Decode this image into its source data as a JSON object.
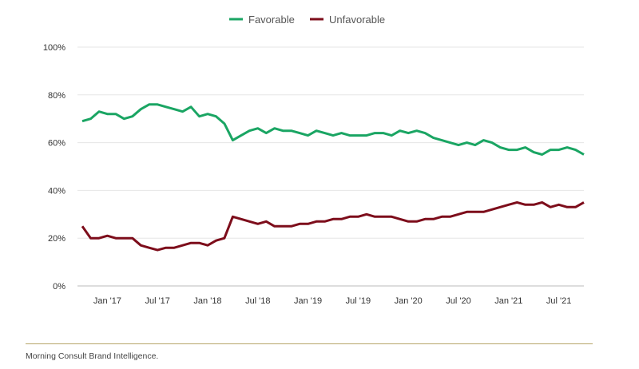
{
  "chart_data": {
    "type": "line",
    "legend_position": "top-center",
    "grid": true,
    "y_ticks": [
      "0%",
      "20%",
      "40%",
      "60%",
      "80%",
      "100%"
    ],
    "ylim": [
      0,
      100
    ],
    "x_tick_labels": [
      "Jan '17",
      "Jul '17",
      "Jan '18",
      "Jul '18",
      "Jan '19",
      "Jul '19",
      "Jan '20",
      "Jul '20",
      "Jan '21",
      "Jul '21"
    ],
    "x_tick_dates": [
      "2017-01",
      "2017-07",
      "2018-01",
      "2018-07",
      "2019-01",
      "2019-07",
      "2020-01",
      "2020-07",
      "2021-01",
      "2021-07"
    ],
    "xlim": [
      "2016-10",
      "2021-10"
    ],
    "series": [
      {
        "name": "Favorable",
        "color": "#1aa563",
        "points": [
          [
            "2016-10",
            69
          ],
          [
            "2016-11",
            70
          ],
          [
            "2016-12",
            73
          ],
          [
            "2017-01",
            72
          ],
          [
            "2017-02",
            72
          ],
          [
            "2017-03",
            70
          ],
          [
            "2017-04",
            71
          ],
          [
            "2017-05",
            74
          ],
          [
            "2017-06",
            76
          ],
          [
            "2017-07",
            76
          ],
          [
            "2017-08",
            75
          ],
          [
            "2017-09",
            74
          ],
          [
            "2017-10",
            73
          ],
          [
            "2017-11",
            75
          ],
          [
            "2017-12",
            71
          ],
          [
            "2018-01",
            72
          ],
          [
            "2018-02",
            71
          ],
          [
            "2018-03",
            68
          ],
          [
            "2018-04",
            61
          ],
          [
            "2018-05",
            63
          ],
          [
            "2018-06",
            65
          ],
          [
            "2018-07",
            66
          ],
          [
            "2018-08",
            64
          ],
          [
            "2018-09",
            66
          ],
          [
            "2018-10",
            65
          ],
          [
            "2018-11",
            65
          ],
          [
            "2018-12",
            64
          ],
          [
            "2019-01",
            63
          ],
          [
            "2019-02",
            65
          ],
          [
            "2019-03",
            64
          ],
          [
            "2019-04",
            63
          ],
          [
            "2019-05",
            64
          ],
          [
            "2019-06",
            63
          ],
          [
            "2019-07",
            63
          ],
          [
            "2019-08",
            63
          ],
          [
            "2019-09",
            64
          ],
          [
            "2019-10",
            64
          ],
          [
            "2019-11",
            63
          ],
          [
            "2019-12",
            65
          ],
          [
            "2020-01",
            64
          ],
          [
            "2020-02",
            65
          ],
          [
            "2020-03",
            64
          ],
          [
            "2020-04",
            62
          ],
          [
            "2020-05",
            61
          ],
          [
            "2020-06",
            60
          ],
          [
            "2020-07",
            59
          ],
          [
            "2020-08",
            60
          ],
          [
            "2020-09",
            59
          ],
          [
            "2020-10",
            61
          ],
          [
            "2020-11",
            60
          ],
          [
            "2020-12",
            58
          ],
          [
            "2021-01",
            57
          ],
          [
            "2021-02",
            57
          ],
          [
            "2021-03",
            58
          ],
          [
            "2021-04",
            56
          ],
          [
            "2021-05",
            55
          ],
          [
            "2021-06",
            57
          ],
          [
            "2021-07",
            57
          ],
          [
            "2021-08",
            58
          ],
          [
            "2021-09",
            57
          ],
          [
            "2021-10",
            55
          ]
        ]
      },
      {
        "name": "Unfavorable",
        "color": "#7d0d1b",
        "points": [
          [
            "2016-10",
            25
          ],
          [
            "2016-11",
            20
          ],
          [
            "2016-12",
            20
          ],
          [
            "2017-01",
            21
          ],
          [
            "2017-02",
            20
          ],
          [
            "2017-03",
            20
          ],
          [
            "2017-04",
            20
          ],
          [
            "2017-05",
            17
          ],
          [
            "2017-06",
            16
          ],
          [
            "2017-07",
            15
          ],
          [
            "2017-08",
            16
          ],
          [
            "2017-09",
            16
          ],
          [
            "2017-10",
            17
          ],
          [
            "2017-11",
            18
          ],
          [
            "2017-12",
            18
          ],
          [
            "2018-01",
            17
          ],
          [
            "2018-02",
            19
          ],
          [
            "2018-03",
            20
          ],
          [
            "2018-04",
            29
          ],
          [
            "2018-05",
            28
          ],
          [
            "2018-06",
            27
          ],
          [
            "2018-07",
            26
          ],
          [
            "2018-08",
            27
          ],
          [
            "2018-09",
            25
          ],
          [
            "2018-10",
            25
          ],
          [
            "2018-11",
            25
          ],
          [
            "2018-12",
            26
          ],
          [
            "2019-01",
            26
          ],
          [
            "2019-02",
            27
          ],
          [
            "2019-03",
            27
          ],
          [
            "2019-04",
            28
          ],
          [
            "2019-05",
            28
          ],
          [
            "2019-06",
            29
          ],
          [
            "2019-07",
            29
          ],
          [
            "2019-08",
            30
          ],
          [
            "2019-09",
            29
          ],
          [
            "2019-10",
            29
          ],
          [
            "2019-11",
            29
          ],
          [
            "2019-12",
            28
          ],
          [
            "2020-01",
            27
          ],
          [
            "2020-02",
            27
          ],
          [
            "2020-03",
            28
          ],
          [
            "2020-04",
            28
          ],
          [
            "2020-05",
            29
          ],
          [
            "2020-06",
            29
          ],
          [
            "2020-07",
            30
          ],
          [
            "2020-08",
            31
          ],
          [
            "2020-09",
            31
          ],
          [
            "2020-10",
            31
          ],
          [
            "2020-11",
            32
          ],
          [
            "2020-12",
            33
          ],
          [
            "2021-01",
            34
          ],
          [
            "2021-02",
            35
          ],
          [
            "2021-03",
            34
          ],
          [
            "2021-04",
            34
          ],
          [
            "2021-05",
            35
          ],
          [
            "2021-06",
            33
          ],
          [
            "2021-07",
            34
          ],
          [
            "2021-08",
            33
          ],
          [
            "2021-09",
            33
          ],
          [
            "2021-10",
            35
          ]
        ]
      }
    ]
  },
  "source_note": "Morning Consult Brand Intelligence."
}
